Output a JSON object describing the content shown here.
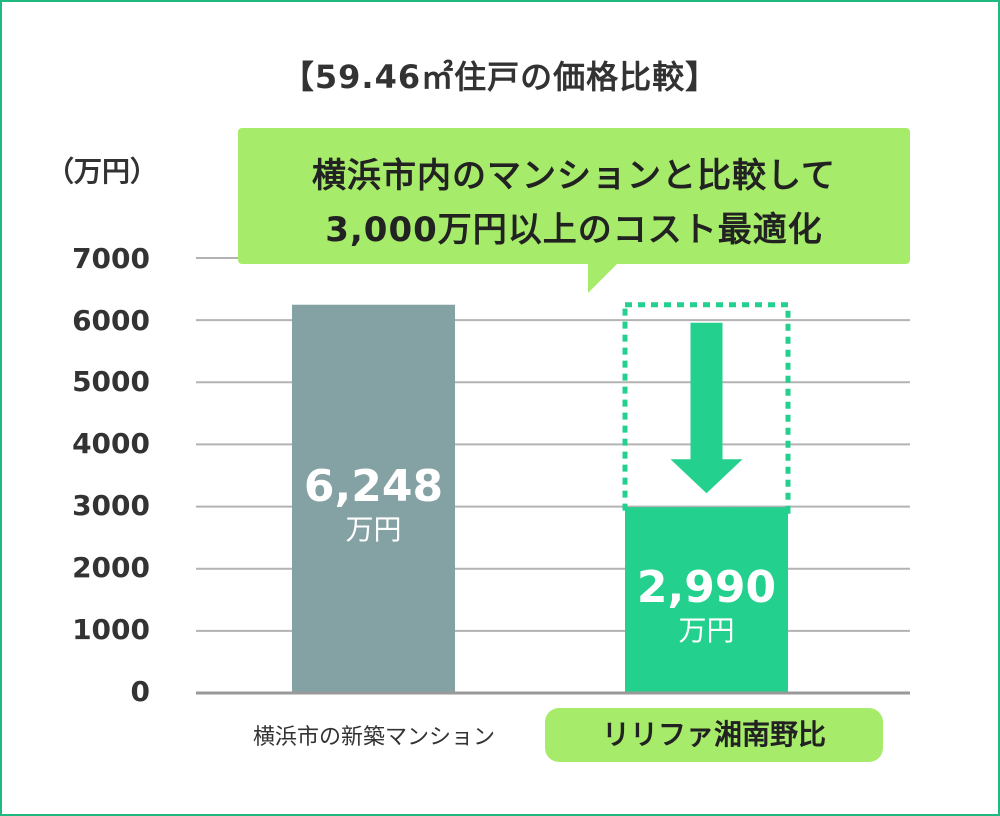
{
  "chart_data": {
    "type": "bar",
    "title": "【59.46㎡住戸の価格比較】",
    "ylabel": "（万円）",
    "ylim": [
      0,
      7000
    ],
    "yticks": [
      "0",
      "1000",
      "2000",
      "3000",
      "4000",
      "5000",
      "6000",
      "7000"
    ],
    "categories": [
      "横浜市の新築マンション",
      "リリファ湘南野比"
    ],
    "values": [
      6248,
      2990
    ],
    "value_labels": [
      "6,248",
      "2,990"
    ],
    "value_unit": "万円",
    "grid": true,
    "colors": {
      "bar_default": "#84a1a4",
      "bar_highlight": "#23d08d",
      "arrow": "#23d08d",
      "callout": "#a6ec6a",
      "grid": "#b3b3b3",
      "frame": "#1fb87e"
    },
    "annotation": {
      "line1": "横浜市内のマンションと比較して",
      "line2": "3,000万円以上のコスト最適化"
    },
    "highlight_category_index": 1
  }
}
